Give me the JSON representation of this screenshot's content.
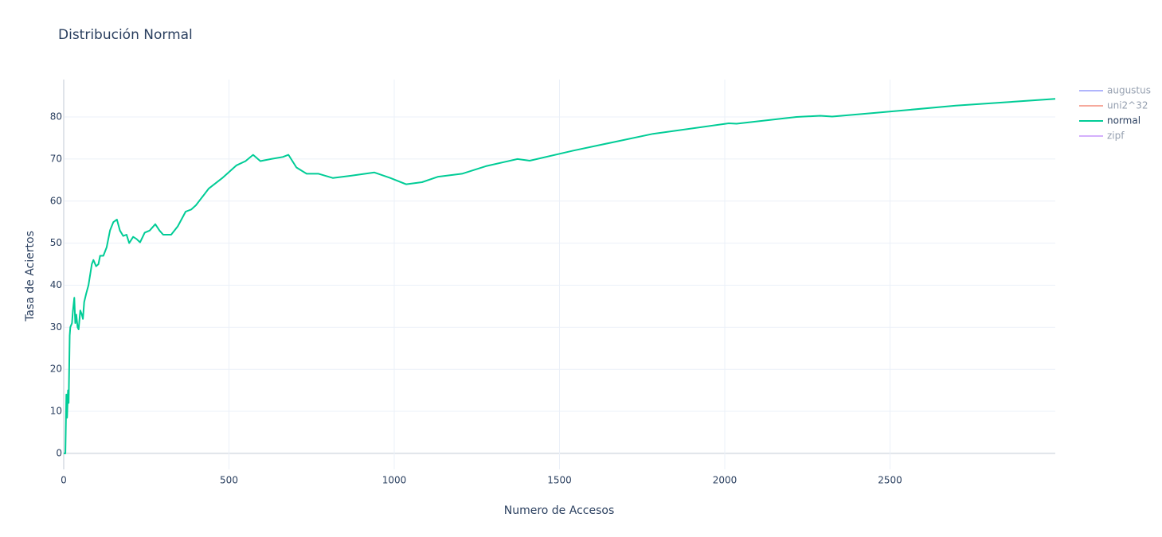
{
  "chart_data": {
    "type": "line",
    "title": "Distribución Normal",
    "x_label": "Numero de Accesos",
    "y_label": "Tasa de Aciertos",
    "xlim": [
      0,
      3000
    ],
    "ylim": [
      -3.8,
      88.9
    ],
    "xticks": [
      0,
      500,
      1000,
      1500,
      2000,
      2500
    ],
    "yticks": [
      0,
      10,
      20,
      30,
      40,
      50,
      60,
      70,
      80
    ],
    "grid": true,
    "legend": "right",
    "x": [
      0,
      5,
      8,
      10,
      13,
      15,
      18,
      20,
      25,
      28,
      32,
      35,
      38,
      42,
      45,
      50,
      55,
      58,
      62,
      68,
      75,
      85,
      90,
      98,
      105,
      110,
      120,
      130,
      140,
      150,
      161,
      170,
      180,
      190,
      198,
      210,
      220,
      231,
      245,
      260,
      277,
      290,
      301,
      325,
      345,
      369,
      386,
      400,
      439,
      480,
      523,
      550,
      573,
      595,
      627,
      663,
      680,
      704,
      735,
      771,
      814,
      867,
      940,
      988,
      1036,
      1084,
      1133,
      1205,
      1277,
      1373,
      1410,
      1542,
      1783,
      2012,
      2036,
      2217,
      2289,
      2325,
      2458,
      2699,
      3000
    ],
    "series": [
      {
        "name": "augustus",
        "color": "#636efa",
        "visible": "legendonly"
      },
      {
        "name": "uni2^32",
        "color": "#EF553B",
        "visible": "legendonly"
      },
      {
        "name": "normal",
        "color": "#00cc96",
        "visible": true,
        "values": [
          0,
          0,
          14,
          8.5,
          15,
          12,
          28,
          30,
          31,
          34,
          37,
          31,
          33,
          30,
          29.5,
          34,
          33,
          32,
          36,
          38,
          40,
          45,
          46,
          44.5,
          45,
          47,
          47,
          49,
          53,
          55,
          55.6,
          53,
          51.7,
          52,
          50,
          51.5,
          51,
          50.2,
          52.5,
          53,
          54.5,
          53,
          52,
          52,
          54,
          57.5,
          58,
          59,
          63,
          65.5,
          68.5,
          69.5,
          71,
          69.5,
          70,
          70.5,
          71,
          68,
          66.5,
          66.5,
          65.5,
          66,
          66.8,
          65.5,
          64,
          64.5,
          65.8,
          66.5,
          68.3,
          70,
          69.6,
          72,
          76,
          78.5,
          78.4,
          80,
          80.3,
          80.1,
          81,
          82.7,
          84.3
        ]
      },
      {
        "name": "zipf",
        "color": "#ab63fa",
        "visible": "legendonly"
      }
    ]
  }
}
